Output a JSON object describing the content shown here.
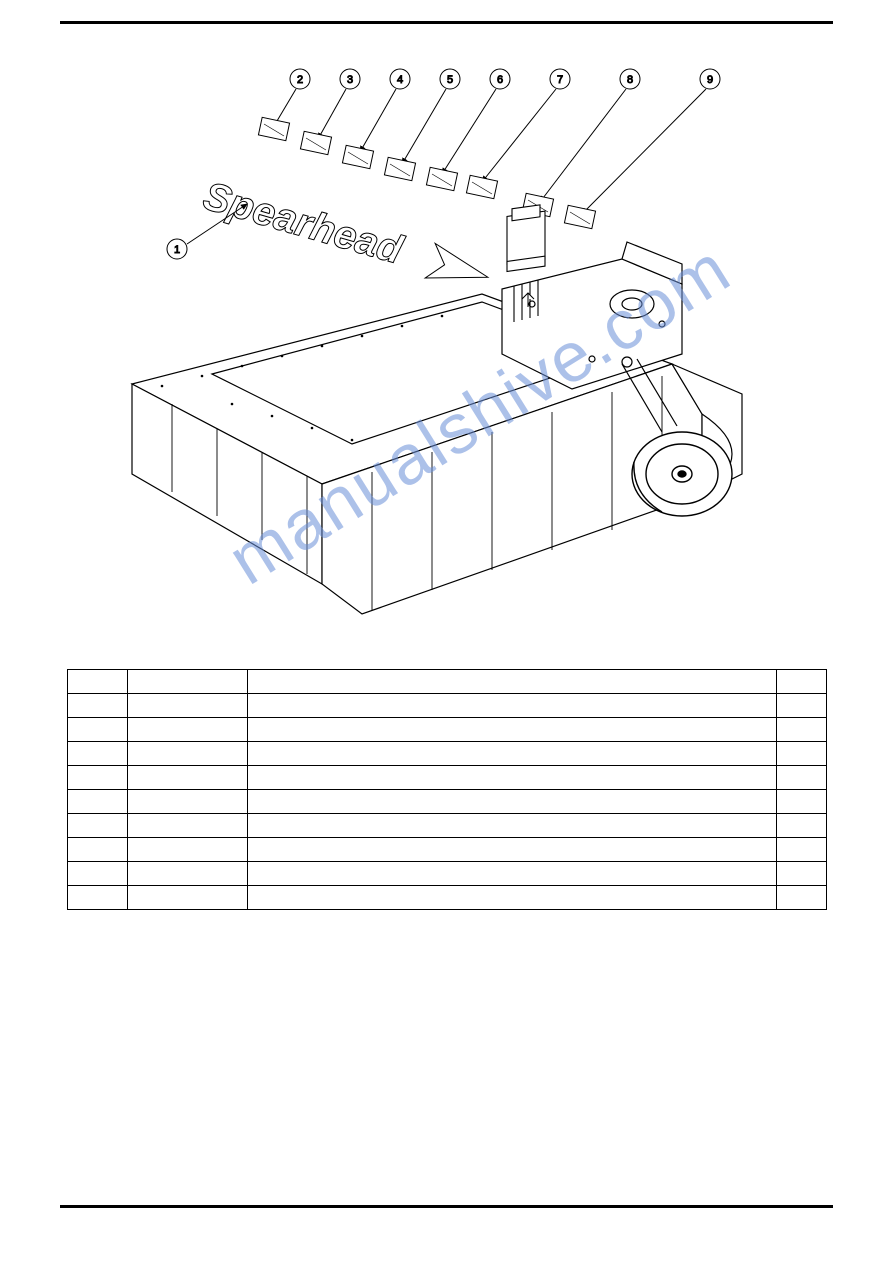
{
  "header": {
    "right": ""
  },
  "section_title": "",
  "callouts": [
    "1",
    "2",
    "3",
    "4",
    "5",
    "6",
    "7",
    "8",
    "9"
  ],
  "watermark": "manualshive.com",
  "table": {
    "headers": [
      "",
      "",
      "",
      ""
    ],
    "rows": [
      [
        "",
        "",
        "",
        ""
      ],
      [
        "",
        "",
        "",
        ""
      ],
      [
        "",
        "",
        "",
        ""
      ],
      [
        "",
        "",
        "",
        ""
      ],
      [
        "",
        "",
        "",
        ""
      ],
      [
        "",
        "",
        "",
        ""
      ],
      [
        "",
        "",
        "",
        ""
      ],
      [
        "",
        "",
        "",
        ""
      ],
      [
        "",
        "",
        "",
        ""
      ]
    ]
  },
  "page_number": "",
  "colors": {
    "line": "#000000",
    "watermark": "#6a8fd8",
    "bg": "#ffffff"
  }
}
